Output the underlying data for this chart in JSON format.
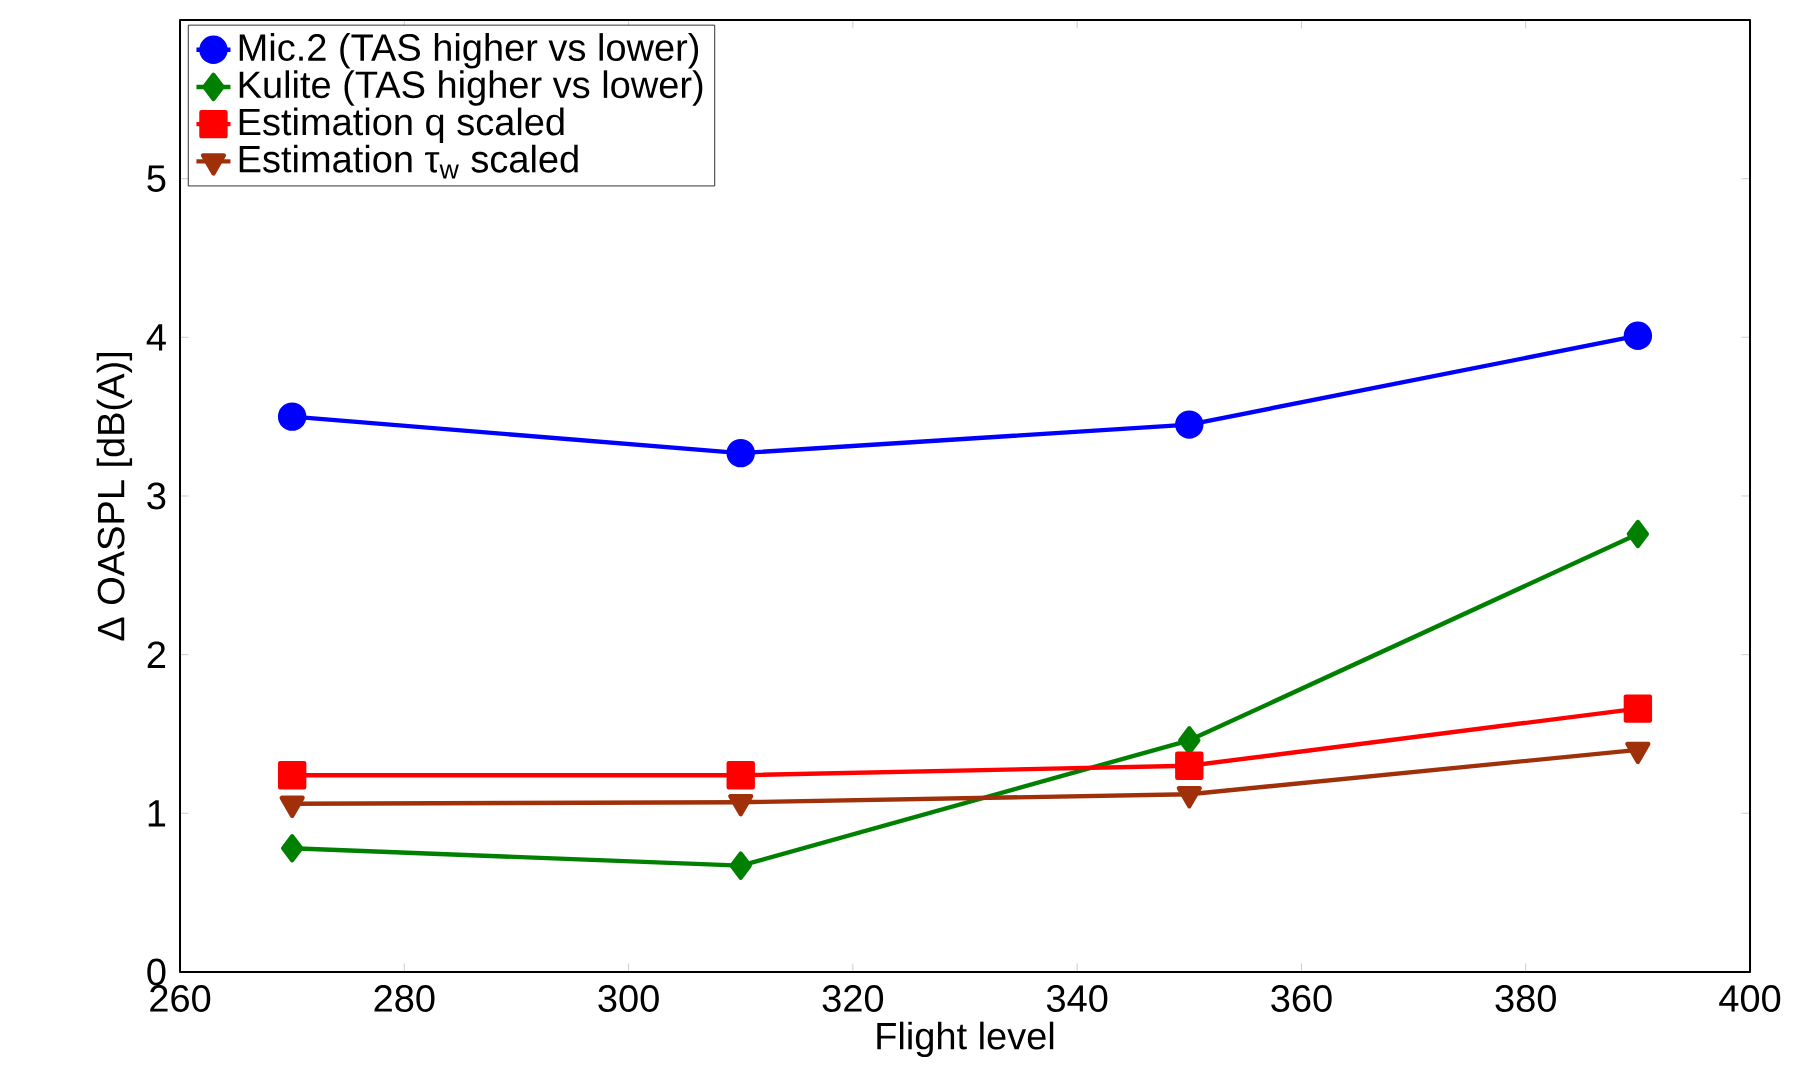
{
  "chart_data": {
    "type": "line",
    "xlabel": "Flight level",
    "ylabel": "Δ OASPL [dB(A)]",
    "x": [
      270,
      310,
      350,
      390
    ],
    "series": [
      {
        "name": "Mic.2 (TAS higher vs lower)",
        "color": "#0000ff",
        "marker": "circle",
        "values": [
          3.5,
          3.27,
          3.45,
          4.01
        ]
      },
      {
        "name": "Kulite (TAS higher vs lower)",
        "color": "#008000",
        "marker": "diamond",
        "values": [
          0.78,
          0.67,
          1.46,
          2.76
        ]
      },
      {
        "name": "Estimation q scaled",
        "color": "#ff0000",
        "marker": "square",
        "values": [
          1.24,
          1.24,
          1.3,
          1.66
        ]
      },
      {
        "name": "Estimation τ$_{w}$ scaled",
        "color": "#a0300a",
        "marker": "triangle",
        "values": [
          1.06,
          1.07,
          1.12,
          1.4
        ]
      }
    ],
    "xlim": [
      260,
      400
    ],
    "ylim": [
      0,
      6
    ],
    "xticks": [
      260,
      280,
      300,
      320,
      340,
      360,
      380,
      400
    ],
    "yticks": [
      0,
      1,
      2,
      3,
      4,
      5
    ],
    "grid": false,
    "legend": "top left",
    "line_style": "solid"
  }
}
